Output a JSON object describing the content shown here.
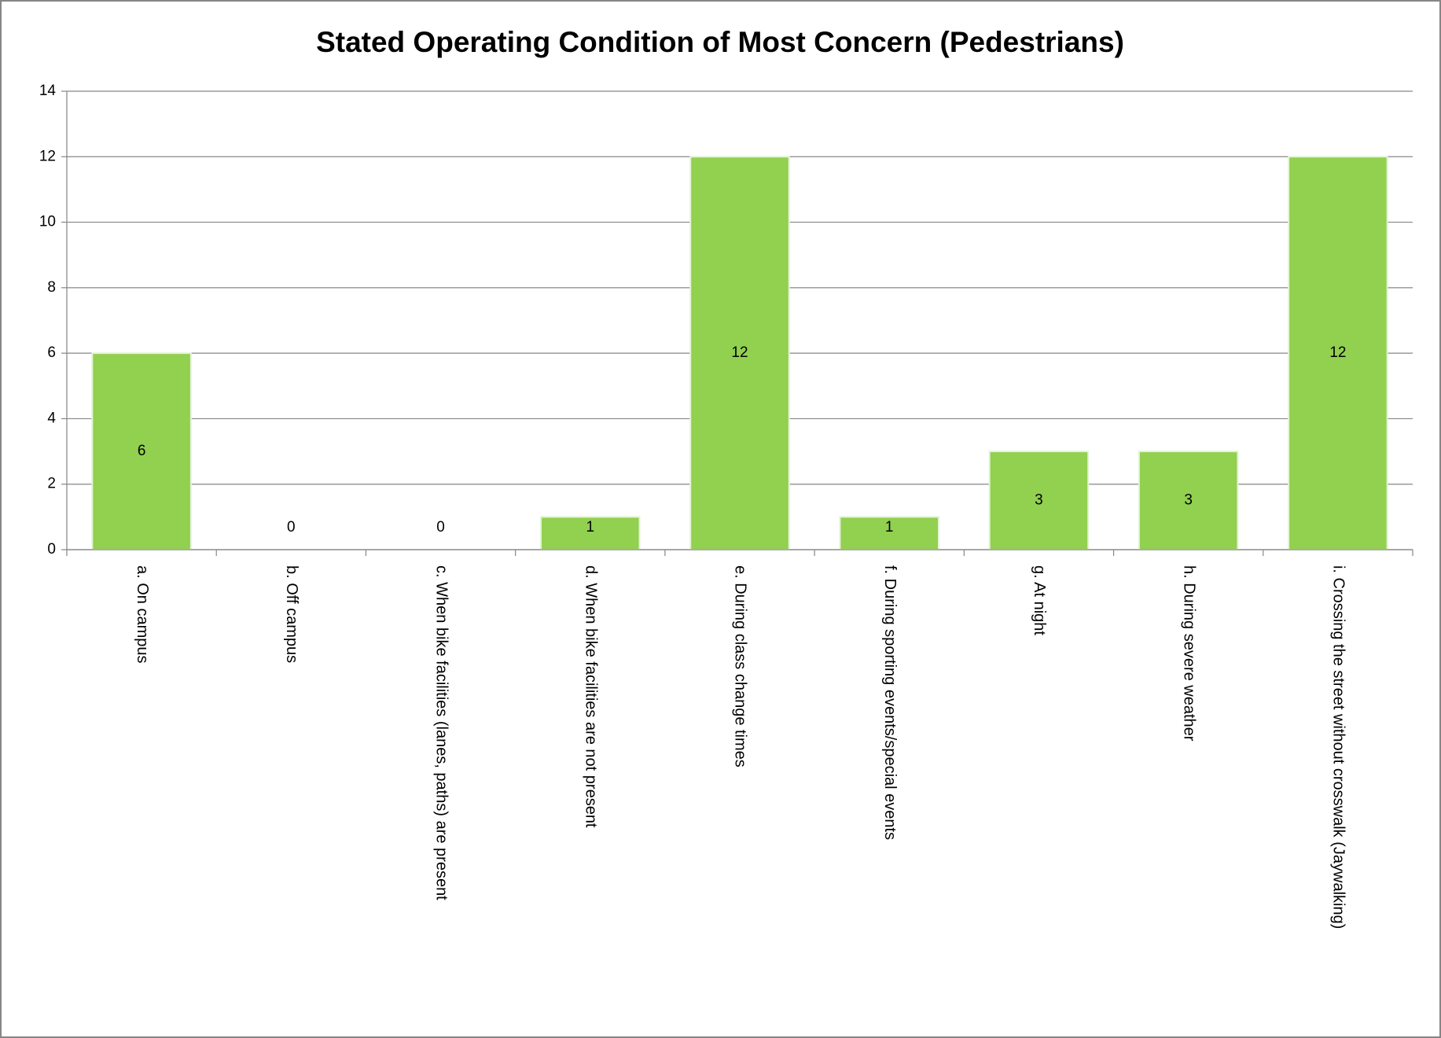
{
  "chart_data": {
    "type": "bar",
    "title": "Stated Operating Condition of Most Concern (Pedestrians)",
    "categories": [
      "a. On campus",
      "b. Off campus",
      "c. When bike facilities (lanes, paths) are present",
      "d. When bike facilities are not present",
      "e. During class change times",
      "f. During sporting events/special events",
      "g. At night",
      "h. During severe weather",
      "i.  Crossing the street without crosswalk (Jaywalking)"
    ],
    "values": [
      6,
      0,
      0,
      1,
      12,
      1,
      3,
      3,
      12
    ],
    "color": "#92d050",
    "ylim": [
      0,
      14
    ],
    "yticks": [
      0,
      2,
      4,
      6,
      8,
      10,
      12,
      14
    ],
    "grid": true
  }
}
